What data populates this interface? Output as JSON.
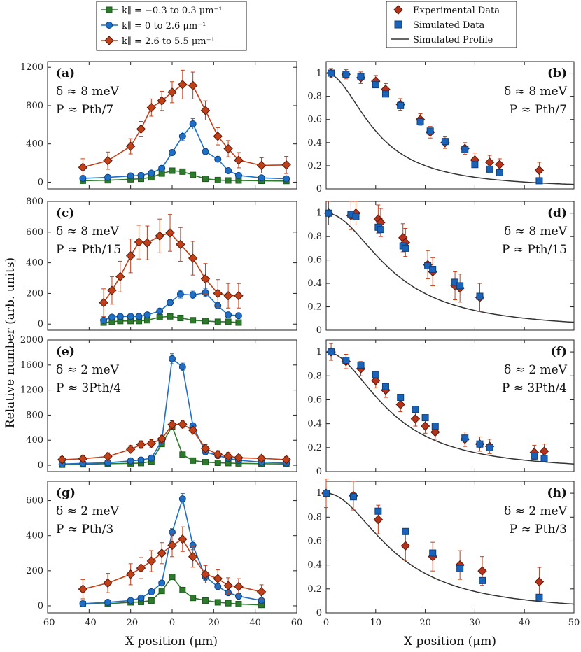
{
  "y_axis_label": "Relative number (arb. units)",
  "x_axis_label_left": "X position (μm)",
  "x_axis_label_right": "X position (μm)",
  "colors": {
    "green": "#2d7a2d",
    "blue": "#1f6fc6",
    "red": "#c0401a",
    "fill_red": "#b5321c",
    "fill_blue": "#1a63b8",
    "line": "#333333"
  },
  "legend_left": [
    {
      "key": "green",
      "text": "k∥ = −0.3 to 0.3 μm⁻¹"
    },
    {
      "key": "blue",
      "text": "k∥ = 0 to 2.6 μm⁻¹"
    },
    {
      "key": "red",
      "text": "k∥ = 2.6 to 5.5 μm⁻¹"
    }
  ],
  "legend_right": [
    {
      "key": "exp",
      "text": "Experimental Data"
    },
    {
      "key": "sim",
      "text": "Simulated Data"
    },
    {
      "key": "prof",
      "text": "Simulated Profile"
    }
  ],
  "chart_data": [
    {
      "type": "line",
      "panel": "(a)",
      "delta": "δ ≈ 8 meV",
      "power": "P ≈ Pth/7",
      "xlim": [
        -60,
        60
      ],
      "ylim": [
        -70,
        1260
      ],
      "yticks": [
        0,
        400,
        800,
        1200
      ],
      "series": [
        {
          "name": "green",
          "x": [
            -43,
            -31,
            -20,
            -15,
            -10,
            -5,
            0,
            5,
            10,
            16,
            22,
            27,
            32,
            43,
            55
          ],
          "y": [
            15,
            20,
            30,
            35,
            50,
            90,
            120,
            110,
            75,
            35,
            22,
            18,
            18,
            14,
            12
          ]
        },
        {
          "name": "blue",
          "x": [
            -43,
            -31,
            -20,
            -15,
            -10,
            -5,
            0,
            5,
            10,
            16,
            22,
            27,
            32,
            43,
            55
          ],
          "y": [
            40,
            50,
            65,
            70,
            95,
            145,
            310,
            480,
            610,
            320,
            240,
            120,
            70,
            45,
            35
          ],
          "err": [
            15,
            15,
            15,
            15,
            20,
            25,
            30,
            45,
            55,
            30,
            25,
            20,
            15,
            15,
            15
          ]
        },
        {
          "name": "red",
          "x": [
            -43,
            -31,
            -20,
            -15,
            -10,
            -5,
            0,
            5,
            10,
            16,
            22,
            27,
            32,
            43,
            55
          ],
          "y": [
            155,
            225,
            375,
            555,
            780,
            850,
            940,
            1020,
            1010,
            750,
            480,
            350,
            230,
            175,
            180
          ],
          "err": [
            90,
            90,
            80,
            80,
            90,
            100,
            110,
            150,
            140,
            100,
            90,
            85,
            80,
            80,
            90
          ]
        }
      ]
    },
    {
      "type": "scatter",
      "panel": "(b)",
      "delta": "δ ≈ 8 meV",
      "power": "P ≈ Pth/7",
      "xlim": [
        0,
        50
      ],
      "ylim": [
        0,
        1.1
      ],
      "yticks": [
        0,
        0.2,
        0.4,
        0.6,
        0.8,
        1
      ],
      "experimental": {
        "x": [
          1,
          4,
          7,
          10,
          12,
          15,
          19,
          21,
          24,
          28,
          30,
          33,
          35,
          43
        ],
        "y": [
          1.0,
          0.99,
          0.96,
          0.93,
          0.86,
          0.73,
          0.6,
          0.49,
          0.4,
          0.35,
          0.25,
          0.23,
          0.21,
          0.16
        ],
        "err": [
          0.04,
          0.04,
          0.05,
          0.05,
          0.05,
          0.05,
          0.05,
          0.05,
          0.05,
          0.05,
          0.06,
          0.06,
          0.05,
          0.07
        ]
      },
      "simulated": {
        "x": [
          1,
          4,
          7,
          10,
          12,
          15,
          19,
          21,
          24,
          28,
          30,
          33,
          35,
          43
        ],
        "y": [
          1.0,
          0.99,
          0.97,
          0.9,
          0.82,
          0.72,
          0.58,
          0.5,
          0.41,
          0.34,
          0.21,
          0.17,
          0.14,
          0.07
        ]
      },
      "profile_scale": 10,
      "profile_form": "1/(1+(x/a)^2)"
    },
    {
      "type": "line",
      "panel": "(c)",
      "delta": "δ ≈ 8 meV",
      "power": "P ≈ Pth/15",
      "xlim": [
        -60,
        60
      ],
      "ylim": [
        -40,
        800
      ],
      "yticks": [
        0,
        200,
        400,
        600,
        800
      ],
      "series": [
        {
          "name": "green",
          "x": [
            -33,
            -29,
            -25,
            -20,
            -16,
            -12,
            -6,
            -1,
            4,
            10,
            16,
            22,
            27,
            32
          ],
          "y": [
            10,
            15,
            20,
            20,
            20,
            25,
            45,
            50,
            40,
            25,
            20,
            15,
            15,
            10
          ]
        },
        {
          "name": "blue",
          "x": [
            -33,
            -29,
            -25,
            -20,
            -16,
            -12,
            -6,
            -1,
            4,
            10,
            16,
            22,
            27,
            32
          ],
          "y": [
            25,
            45,
            50,
            50,
            50,
            60,
            85,
            140,
            195,
            190,
            205,
            120,
            60,
            55
          ],
          "err": [
            10,
            10,
            10,
            10,
            10,
            10,
            15,
            20,
            25,
            25,
            25,
            20,
            15,
            15
          ]
        },
        {
          "name": "red",
          "x": [
            -33,
            -29,
            -25,
            -20,
            -16,
            -12,
            -6,
            -1,
            4,
            10,
            16,
            22,
            27,
            32
          ],
          "y": [
            140,
            220,
            310,
            445,
            535,
            530,
            575,
            595,
            520,
            430,
            295,
            200,
            185,
            185
          ],
          "err": [
            90,
            90,
            100,
            110,
            110,
            110,
            110,
            120,
            110,
            110,
            100,
            90,
            80,
            80
          ]
        }
      ]
    },
    {
      "type": "scatter",
      "panel": "(d)",
      "delta": "δ ≈ 8 meV",
      "power": "P ≈ Pth/15",
      "xlim": [
        0,
        50
      ],
      "ylim": [
        0,
        1.1
      ],
      "yticks": [
        0,
        0.2,
        0.4,
        0.6,
        0.8,
        1
      ],
      "experimental": {
        "x": [
          0.5,
          5,
          6,
          10.5,
          11,
          15.5,
          16,
          20.5,
          21.5,
          26,
          27,
          31
        ],
        "y": [
          1.0,
          0.98,
          1.0,
          0.95,
          0.92,
          0.79,
          0.75,
          0.56,
          0.5,
          0.38,
          0.36,
          0.28
        ],
        "err": [
          0.1,
          0.12,
          0.1,
          0.12,
          0.12,
          0.12,
          0.12,
          0.12,
          0.12,
          0.12,
          0.12,
          0.12
        ]
      },
      "simulated": {
        "x": [
          0.5,
          5,
          6,
          10.5,
          11,
          15.5,
          16,
          20.5,
          21.5,
          26,
          27,
          31
        ],
        "y": [
          1.0,
          0.99,
          0.97,
          0.88,
          0.86,
          0.72,
          0.7,
          0.55,
          0.52,
          0.41,
          0.38,
          0.29
        ]
      },
      "profile_scale": 13.5,
      "profile_form": "1/(1+(x/a)^2)"
    },
    {
      "type": "line",
      "panel": "(e)",
      "delta": "δ ≈ 2 meV",
      "power": "P ≈ 3Pth/4",
      "xlim": [
        -60,
        60
      ],
      "ylim": [
        -100,
        2000
      ],
      "yticks": [
        0,
        400,
        800,
        1200,
        1600,
        2000
      ],
      "series": [
        {
          "name": "green",
          "x": [
            -53,
            -43,
            -31,
            -20,
            -15,
            -10,
            -5,
            0,
            5,
            10,
            16,
            22,
            27,
            32,
            43,
            55
          ],
          "y": [
            10,
            15,
            25,
            30,
            35,
            60,
            340,
            620,
            170,
            75,
            50,
            40,
            35,
            30,
            25,
            20
          ]
        },
        {
          "name": "blue",
          "x": [
            -53,
            -43,
            -31,
            -20,
            -15,
            -10,
            -5,
            0,
            5,
            10,
            16,
            22,
            27,
            32,
            43,
            55
          ],
          "y": [
            20,
            30,
            40,
            70,
            85,
            115,
            390,
            1700,
            1570,
            630,
            215,
            155,
            110,
            80,
            50,
            35
          ],
          "err": [
            10,
            10,
            10,
            15,
            15,
            20,
            30,
            80,
            60,
            40,
            20,
            15,
            15,
            10,
            10,
            10
          ]
        },
        {
          "name": "red",
          "x": [
            -53,
            -43,
            -31,
            -20,
            -15,
            -10,
            -5,
            0,
            5,
            10,
            16,
            22,
            27,
            32,
            43,
            55
          ],
          "y": [
            90,
            105,
            140,
            255,
            330,
            350,
            420,
            650,
            655,
            560,
            270,
            175,
            145,
            120,
            110,
            90
          ],
          "err": [
            50,
            50,
            60,
            60,
            60,
            60,
            60,
            60,
            60,
            60,
            60,
            60,
            60,
            50,
            50,
            50
          ]
        }
      ]
    },
    {
      "type": "scatter",
      "panel": "(f)",
      "delta": "δ ≈ 2 meV",
      "power": "P ≈ 3Pth/4",
      "xlim": [
        0,
        50
      ],
      "ylim": [
        0,
        1.1
      ],
      "yticks": [
        0,
        0.2,
        0.4,
        0.6,
        0.8,
        1
      ],
      "experimental": {
        "x": [
          1,
          4,
          7,
          10,
          12,
          15,
          18,
          20,
          22,
          28,
          31,
          33,
          42,
          44
        ],
        "y": [
          1.0,
          0.92,
          0.86,
          0.76,
          0.68,
          0.56,
          0.44,
          0.38,
          0.33,
          0.27,
          0.23,
          0.21,
          0.16,
          0.17
        ],
        "err": [
          0.07,
          0.06,
          0.06,
          0.06,
          0.06,
          0.06,
          0.06,
          0.06,
          0.06,
          0.06,
          0.06,
          0.06,
          0.06,
          0.06
        ]
      },
      "simulated": {
        "x": [
          1,
          4,
          7,
          10,
          12,
          15,
          18,
          20,
          22,
          28,
          31,
          33,
          42,
          44
        ],
        "y": [
          1.0,
          0.93,
          0.89,
          0.81,
          0.71,
          0.62,
          0.52,
          0.45,
          0.38,
          0.28,
          0.23,
          0.2,
          0.13,
          0.11
        ]
      },
      "profile_scale": 13,
      "profile_form": "1/(1+(x/a)^2)"
    },
    {
      "type": "line",
      "panel": "(g)",
      "delta": "δ ≈ 2 meV",
      "power": "P ≈ Pth/3",
      "xlim": [
        -60,
        60
      ],
      "ylim": [
        -40,
        710
      ],
      "yticks": [
        0,
        200,
        400,
        600
      ],
      "series": [
        {
          "name": "green",
          "x": [
            -43,
            -31,
            -20,
            -15,
            -10,
            -5,
            0,
            5,
            10,
            16,
            22,
            27,
            32,
            43
          ],
          "y": [
            10,
            12,
            20,
            22,
            30,
            85,
            165,
            90,
            45,
            30,
            20,
            15,
            10,
            5
          ]
        },
        {
          "name": "blue",
          "x": [
            -43,
            -31,
            -20,
            -15,
            -10,
            -5,
            0,
            5,
            10,
            16,
            22,
            27,
            32,
            43
          ],
          "y": [
            12,
            20,
            30,
            45,
            80,
            130,
            420,
            610,
            345,
            165,
            110,
            75,
            55,
            30
          ],
          "err": [
            10,
            10,
            10,
            10,
            10,
            15,
            20,
            30,
            25,
            20,
            15,
            10,
            10,
            10
          ]
        },
        {
          "name": "red",
          "x": [
            -43,
            -31,
            -20,
            -15,
            -10,
            -5,
            0,
            5,
            10,
            16,
            22,
            27,
            32,
            43
          ],
          "y": [
            95,
            130,
            180,
            215,
            255,
            300,
            345,
            380,
            280,
            180,
            155,
            115,
            110,
            80
          ],
          "err": [
            55,
            55,
            60,
            60,
            60,
            60,
            65,
            70,
            60,
            50,
            50,
            45,
            45,
            40
          ]
        }
      ]
    },
    {
      "type": "scatter",
      "panel": "(h)",
      "delta": "δ ≈ 2 meV",
      "power": "P ≈ Pth/3",
      "xlim": [
        0,
        50
      ],
      "ylim": [
        0,
        1.1
      ],
      "yticks": [
        0,
        0.2,
        0.4,
        0.6,
        0.8,
        1
      ],
      "experimental": {
        "x": [
          0,
          5.5,
          10.5,
          16,
          21.5,
          27,
          31.5,
          43
        ],
        "y": [
          1.0,
          0.98,
          0.78,
          0.56,
          0.47,
          0.4,
          0.35,
          0.26
        ],
        "err": [
          0.12,
          0.12,
          0.12,
          0.12,
          0.12,
          0.12,
          0.12,
          0.12
        ]
      },
      "simulated": {
        "x": [
          0,
          5.5,
          10.5,
          16,
          21.5,
          27,
          31.5,
          43
        ],
        "y": [
          1.0,
          0.97,
          0.85,
          0.68,
          0.5,
          0.37,
          0.27,
          0.13
        ]
      },
      "profile_scale": 14,
      "profile_form": "1/(1+(x/a)^2)"
    }
  ]
}
